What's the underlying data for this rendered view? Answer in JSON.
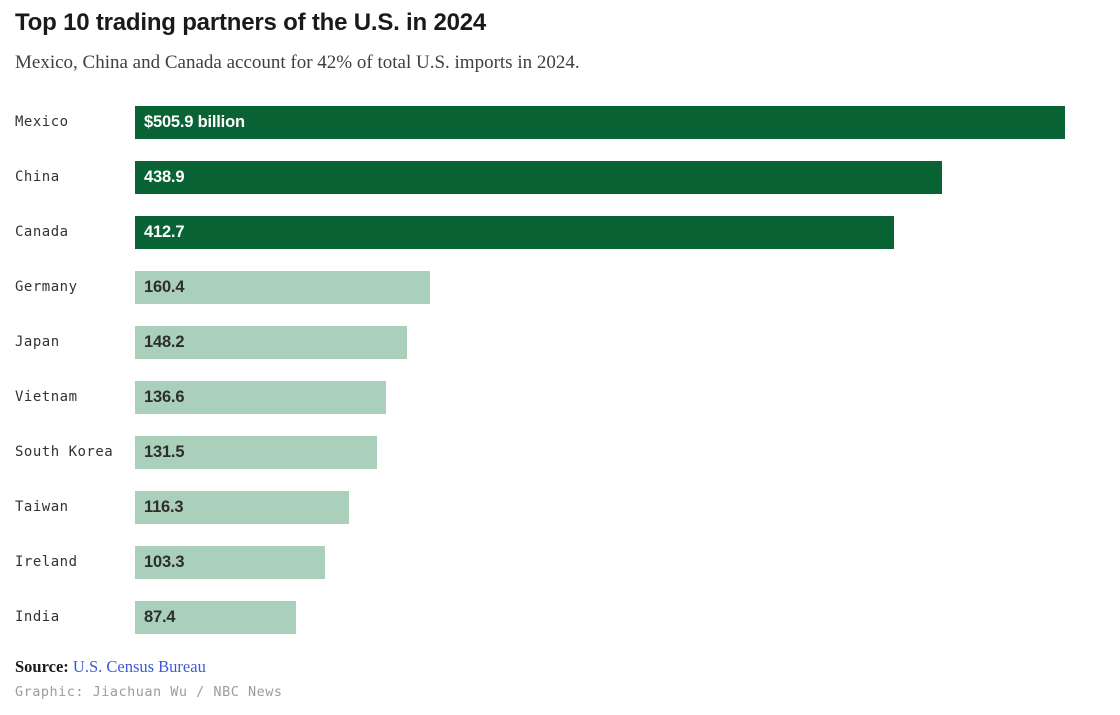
{
  "header": {
    "title": "Top 10 trading partners of the U.S. in 2024",
    "subtitle": "Mexico, China and Canada account for 42% of total U.S. imports in 2024."
  },
  "chart_data": {
    "type": "bar",
    "orientation": "horizontal",
    "title": "Top 10 trading partners of the U.S. in 2024",
    "subtitle": "Mexico, China and Canada account for 42% of total U.S. imports in 2024.",
    "unit": "billions of U.S. dollars",
    "categories": [
      "Mexico",
      "China",
      "Canada",
      "Germany",
      "Japan",
      "Vietnam",
      "South Korea",
      "Taiwan",
      "Ireland",
      "India"
    ],
    "values": [
      505.9,
      438.9,
      412.7,
      160.4,
      148.2,
      136.6,
      131.5,
      116.3,
      103.3,
      87.4
    ],
    "value_labels": [
      "$505.9 billion",
      "438.9",
      "412.7",
      "160.4",
      "148.2",
      "136.6",
      "131.5",
      "116.3",
      "103.3",
      "87.4"
    ],
    "highlighted": [
      true,
      true,
      true,
      false,
      false,
      false,
      false,
      false,
      false,
      false
    ],
    "xlim": [
      0,
      505.9
    ],
    "grid": false,
    "legend": "none",
    "colors": {
      "bar_highlight": "#0a6334",
      "bar_default": "#aad0bc",
      "value_on_highlight": "#ffffff",
      "value_on_default": "#2e2e2e"
    }
  },
  "footer": {
    "source_label": "Source:",
    "source_link": "U.S. Census Bureau",
    "credit": "Graphic: Jiachuan Wu / NBC News"
  }
}
